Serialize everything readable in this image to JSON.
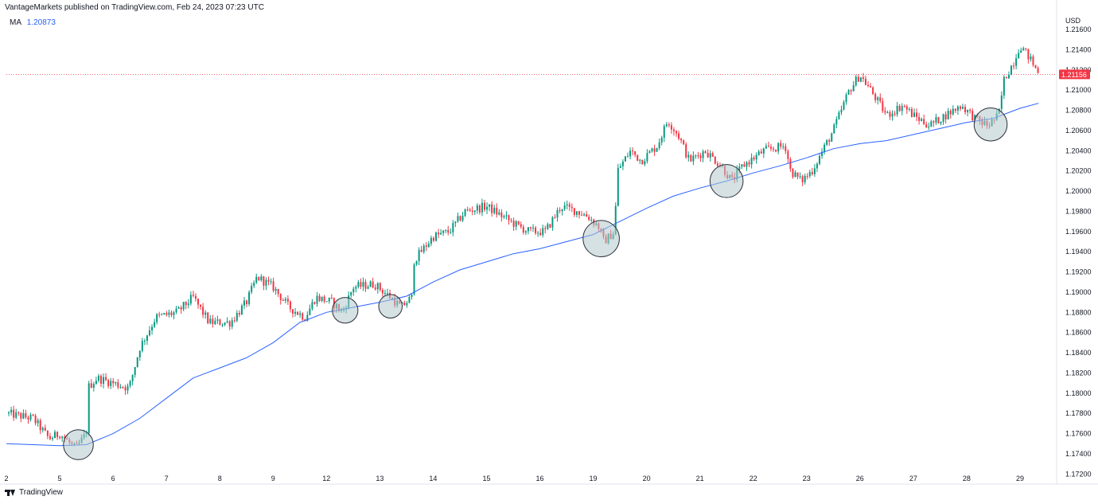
{
  "header": {
    "attribution": "VantageMarkets published on TradingView.com, Feb 24, 2023 07:23 UTC"
  },
  "indicator": {
    "label": "MA",
    "value": "1.20873"
  },
  "footer": {
    "brand": "TradingView"
  },
  "colors": {
    "up": "#089981",
    "down": "#f23645",
    "ma": "#2962ff",
    "price_tag": "#f23645",
    "highlight": "#b2c8cc"
  },
  "chart_data": {
    "type": "candlestick",
    "currency": "USD",
    "last_price": "1.21156",
    "ylim": [
      1.171,
      1.2175
    ],
    "y_ticks": [
      "1.21600",
      "1.21400",
      "1.21200",
      "1.21000",
      "1.20800",
      "1.20600",
      "1.20400",
      "1.20200",
      "1.20000",
      "1.19800",
      "1.19600",
      "1.19400",
      "1.19200",
      "1.19000",
      "1.18800",
      "1.18600",
      "1.18400",
      "1.18200",
      "1.18000",
      "1.17800",
      "1.17600",
      "1.17400",
      "1.17200"
    ],
    "x_ticks": [
      "2",
      "5",
      "6",
      "7",
      "8",
      "9",
      "12",
      "13",
      "14",
      "15",
      "16",
      "19",
      "20",
      "21",
      "22",
      "23",
      "26",
      "27",
      "28",
      "29"
    ],
    "price_path": [
      {
        "x": 0,
        "price": 1.178
      },
      {
        "x": 0.5,
        "price": 1.1775
      },
      {
        "x": 0.8,
        "price": 1.1755
      },
      {
        "x": 1.0,
        "price": 1.176
      },
      {
        "x": 1.3,
        "price": 1.1745
      },
      {
        "x": 1.5,
        "price": 1.176
      },
      {
        "x": 1.52,
        "price": 1.1805
      },
      {
        "x": 1.7,
        "price": 1.1815
      },
      {
        "x": 2.0,
        "price": 1.181
      },
      {
        "x": 2.3,
        "price": 1.1805
      },
      {
        "x": 2.5,
        "price": 1.1845
      },
      {
        "x": 2.8,
        "price": 1.1875
      },
      {
        "x": 3.2,
        "price": 1.188
      },
      {
        "x": 3.5,
        "price": 1.1895
      },
      {
        "x": 3.8,
        "price": 1.187
      },
      {
        "x": 4.2,
        "price": 1.187
      },
      {
        "x": 4.5,
        "price": 1.189
      },
      {
        "x": 4.7,
        "price": 1.1915
      },
      {
        "x": 5.0,
        "price": 1.1905
      },
      {
        "x": 5.3,
        "price": 1.1885
      },
      {
        "x": 5.6,
        "price": 1.1875
      },
      {
        "x": 5.8,
        "price": 1.1895
      },
      {
        "x": 6.1,
        "price": 1.189
      },
      {
        "x": 6.3,
        "price": 1.188
      },
      {
        "x": 6.5,
        "price": 1.1905
      },
      {
        "x": 6.9,
        "price": 1.1908
      },
      {
        "x": 7.2,
        "price": 1.1895
      },
      {
        "x": 7.4,
        "price": 1.1885
      },
      {
        "x": 7.6,
        "price": 1.1895
      },
      {
        "x": 7.62,
        "price": 1.193
      },
      {
        "x": 8.0,
        "price": 1.1955
      },
      {
        "x": 8.3,
        "price": 1.196
      },
      {
        "x": 8.6,
        "price": 1.198
      },
      {
        "x": 9.0,
        "price": 1.1985
      },
      {
        "x": 9.3,
        "price": 1.1975
      },
      {
        "x": 9.6,
        "price": 1.1965
      },
      {
        "x": 9.8,
        "price": 1.196
      },
      {
        "x": 10.1,
        "price": 1.196
      },
      {
        "x": 10.4,
        "price": 1.1985
      },
      {
        "x": 10.7,
        "price": 1.198
      },
      {
        "x": 10.9,
        "price": 1.1975
      },
      {
        "x": 11.1,
        "price": 1.1965
      },
      {
        "x": 11.2,
        "price": 1.195
      },
      {
        "x": 11.4,
        "price": 1.196
      },
      {
        "x": 11.45,
        "price": 1.202
      },
      {
        "x": 11.7,
        "price": 1.204
      },
      {
        "x": 11.9,
        "price": 1.203
      },
      {
        "x": 12.2,
        "price": 1.2045
      },
      {
        "x": 12.4,
        "price": 1.207
      },
      {
        "x": 12.6,
        "price": 1.2055
      },
      {
        "x": 12.8,
        "price": 1.203
      },
      {
        "x": 13.1,
        "price": 1.204
      },
      {
        "x": 13.4,
        "price": 1.2025
      },
      {
        "x": 13.6,
        "price": 1.201
      },
      {
        "x": 13.8,
        "price": 1.2025
      },
      {
        "x": 14.2,
        "price": 1.204
      },
      {
        "x": 14.6,
        "price": 1.2045
      },
      {
        "x": 14.7,
        "price": 1.202
      },
      {
        "x": 14.9,
        "price": 1.201
      },
      {
        "x": 15.1,
        "price": 1.202
      },
      {
        "x": 15.3,
        "price": 1.204
      },
      {
        "x": 15.5,
        "price": 1.206
      },
      {
        "x": 15.8,
        "price": 1.21
      },
      {
        "x": 16.0,
        "price": 1.2115
      },
      {
        "x": 16.2,
        "price": 1.21
      },
      {
        "x": 16.5,
        "price": 1.2075
      },
      {
        "x": 16.8,
        "price": 1.2085
      },
      {
        "x": 17.0,
        "price": 1.2075
      },
      {
        "x": 17.3,
        "price": 1.2065
      },
      {
        "x": 17.6,
        "price": 1.2075
      },
      {
        "x": 17.9,
        "price": 1.2085
      },
      {
        "x": 18.2,
        "price": 1.207
      },
      {
        "x": 18.4,
        "price": 1.2065
      },
      {
        "x": 18.6,
        "price": 1.2075
      },
      {
        "x": 18.7,
        "price": 1.211
      },
      {
        "x": 18.9,
        "price": 1.213
      },
      {
        "x": 19.0,
        "price": 1.2145
      },
      {
        "x": 19.2,
        "price": 1.213
      },
      {
        "x": 19.35,
        "price": 1.2116
      }
    ],
    "series": [
      {
        "name": "MA",
        "type": "line",
        "points": [
          {
            "x": 0,
            "y": 1.175
          },
          {
            "x": 1.0,
            "y": 1.1748
          },
          {
            "x": 1.5,
            "y": 1.1749
          },
          {
            "x": 2.0,
            "y": 1.176
          },
          {
            "x": 2.5,
            "y": 1.1775
          },
          {
            "x": 3.0,
            "y": 1.1795
          },
          {
            "x": 3.5,
            "y": 1.1815
          },
          {
            "x": 4.0,
            "y": 1.1825
          },
          {
            "x": 4.5,
            "y": 1.1835
          },
          {
            "x": 5.0,
            "y": 1.185
          },
          {
            "x": 5.5,
            "y": 1.187
          },
          {
            "x": 6.0,
            "y": 1.188
          },
          {
            "x": 6.5,
            "y": 1.1885
          },
          {
            "x": 7.0,
            "y": 1.189
          },
          {
            "x": 7.5,
            "y": 1.1896
          },
          {
            "x": 8.0,
            "y": 1.191
          },
          {
            "x": 8.5,
            "y": 1.1922
          },
          {
            "x": 9.0,
            "y": 1.193
          },
          {
            "x": 9.5,
            "y": 1.1938
          },
          {
            "x": 10.0,
            "y": 1.1943
          },
          {
            "x": 10.5,
            "y": 1.195
          },
          {
            "x": 11.0,
            "y": 1.1957
          },
          {
            "x": 11.5,
            "y": 1.197
          },
          {
            "x": 12.0,
            "y": 1.1983
          },
          {
            "x": 12.5,
            "y": 1.1995
          },
          {
            "x": 13.0,
            "y": 1.2003
          },
          {
            "x": 13.5,
            "y": 1.201
          },
          {
            "x": 14.0,
            "y": 1.2018
          },
          {
            "x": 14.5,
            "y": 1.2025
          },
          {
            "x": 15.0,
            "y": 1.2033
          },
          {
            "x": 15.5,
            "y": 1.2042
          },
          {
            "x": 16.0,
            "y": 1.2047
          },
          {
            "x": 16.5,
            "y": 1.205
          },
          {
            "x": 17.0,
            "y": 1.2056
          },
          {
            "x": 17.5,
            "y": 1.2062
          },
          {
            "x": 18.0,
            "y": 1.2068
          },
          {
            "x": 18.5,
            "y": 1.2072
          },
          {
            "x": 19.0,
            "y": 1.2082
          },
          {
            "x": 19.35,
            "y": 1.2087
          }
        ]
      }
    ],
    "highlights": [
      {
        "x": 1.35,
        "y": 1.1749,
        "r": 0.28
      },
      {
        "x": 6.35,
        "y": 1.1882,
        "r": 0.24
      },
      {
        "x": 7.2,
        "y": 1.1886,
        "r": 0.22
      },
      {
        "x": 11.15,
        "y": 1.1953,
        "r": 0.34
      },
      {
        "x": 13.5,
        "y": 1.201,
        "r": 0.31
      },
      {
        "x": 18.45,
        "y": 1.2066,
        "r": 0.31
      }
    ],
    "grid": false
  }
}
